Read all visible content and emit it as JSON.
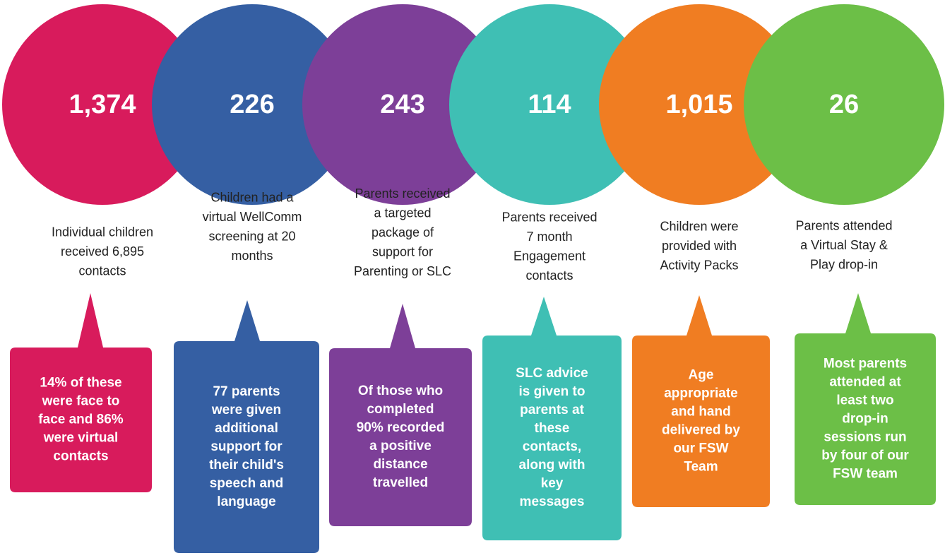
{
  "items": [
    {
      "number": "1,374",
      "color": "#d81b5c",
      "description": [
        "Individual children",
        "received 6,895",
        "contacts"
      ],
      "callout": [
        "14% of these",
        "were face to",
        "face and 86%",
        "were virtual",
        "contacts"
      ]
    },
    {
      "number": "226",
      "color": "#355fa3",
      "description": [
        "Children had a",
        "virtual WellComm",
        "screening at 20",
        "months"
      ],
      "callout": [
        "77 parents",
        "were given",
        "additional",
        "support for",
        "their child's",
        "speech and",
        "language"
      ]
    },
    {
      "number": "243",
      "color": "#7d3f98",
      "description": [
        "Parents received",
        "a targeted",
        "package of",
        "support for",
        "Parenting or SLC"
      ],
      "callout": [
        "Of those who",
        "completed",
        "90% recorded",
        "a positive",
        "distance",
        "travelled"
      ]
    },
    {
      "number": "114",
      "color": "#3fbfb4",
      "description": [
        "Parents received",
        "7 month",
        "Engagement",
        "contacts"
      ],
      "callout": [
        "SLC advice",
        "is given to",
        "parents at",
        "these",
        "contacts,",
        "along with",
        "key",
        "messages"
      ]
    },
    {
      "number": "1,015",
      "color": "#f07d22",
      "description": [
        "Children were",
        "provided with",
        "Activity Packs"
      ],
      "callout": [
        "Age",
        "appropriate",
        "and hand",
        "delivered by",
        "our FSW",
        "Team"
      ]
    },
    {
      "number": "26",
      "color": "#6cbf47",
      "description": [
        "Parents attended",
        "a Virtual Stay &",
        "Play drop-in"
      ],
      "callout": [
        "Most parents",
        "attended at",
        "least two",
        "drop-in",
        "sessions run",
        "by four of our",
        "FSW team"
      ]
    }
  ]
}
